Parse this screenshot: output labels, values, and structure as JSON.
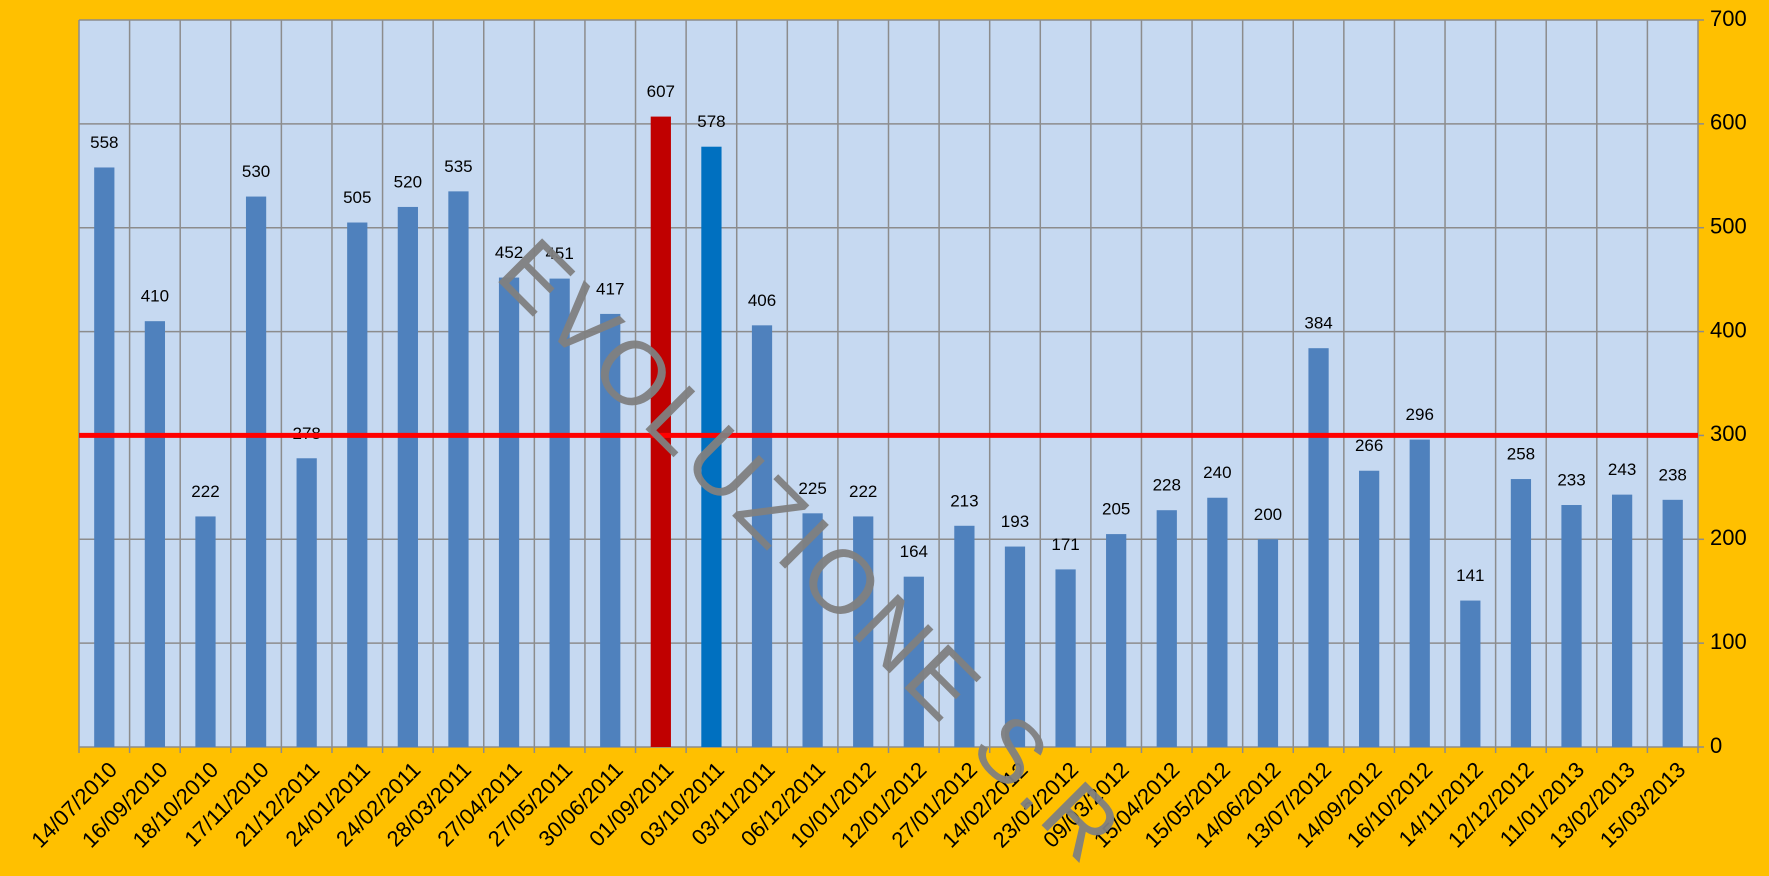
{
  "chart_data": {
    "type": "bar",
    "categories": [
      "14/07/2010",
      "16/09/2010",
      "18/10/2010",
      "17/11/2010",
      "21/12/2011",
      "24/01/2011",
      "24/02/2011",
      "28/03/2011",
      "27/04/2011",
      "27/05/2011",
      "30/06/2011",
      "01/09/2011",
      "03/10/2011",
      "03/11/2011",
      "06/12/2011",
      "10/01/2012",
      "12/01/2012",
      "27/01/2012",
      "14/02/2012",
      "23/02/2012",
      "09/03/2012",
      "15/04/2012",
      "15/05/2012",
      "14/06/2012",
      "13/07/2012",
      "14/09/2012",
      "16/10/2012",
      "14/11/2012",
      "12/12/2012",
      "11/01/2013",
      "13/02/2013",
      "15/03/2013"
    ],
    "values": [
      558,
      410,
      222,
      530,
      278,
      505,
      520,
      535,
      452,
      451,
      417,
      607,
      578,
      406,
      225,
      222,
      164,
      213,
      193,
      171,
      205,
      228,
      240,
      200,
      384,
      266,
      296,
      141,
      258,
      233,
      243,
      238
    ],
    "colors": [
      "#4f81bd",
      "#4f81bd",
      "#4f81bd",
      "#4f81bd",
      "#4f81bd",
      "#4f81bd",
      "#4f81bd",
      "#4f81bd",
      "#4f81bd",
      "#4f81bd",
      "#4f81bd",
      "#c00000",
      "#0070c0",
      "#4f81bd",
      "#4f81bd",
      "#4f81bd",
      "#4f81bd",
      "#4f81bd",
      "#4f81bd",
      "#4f81bd",
      "#4f81bd",
      "#4f81bd",
      "#4f81bd",
      "#4f81bd",
      "#4f81bd",
      "#4f81bd",
      "#4f81bd",
      "#4f81bd",
      "#4f81bd",
      "#4f81bd",
      "#4f81bd",
      "#4f81bd"
    ],
    "ylim": [
      0,
      700
    ],
    "yticks": [
      0,
      100,
      200,
      300,
      400,
      500,
      600,
      700
    ],
    "grid": true,
    "reference_line": {
      "value": 300,
      "color": "#ff0000"
    },
    "watermark": "EVOLUZIONE S.R"
  }
}
